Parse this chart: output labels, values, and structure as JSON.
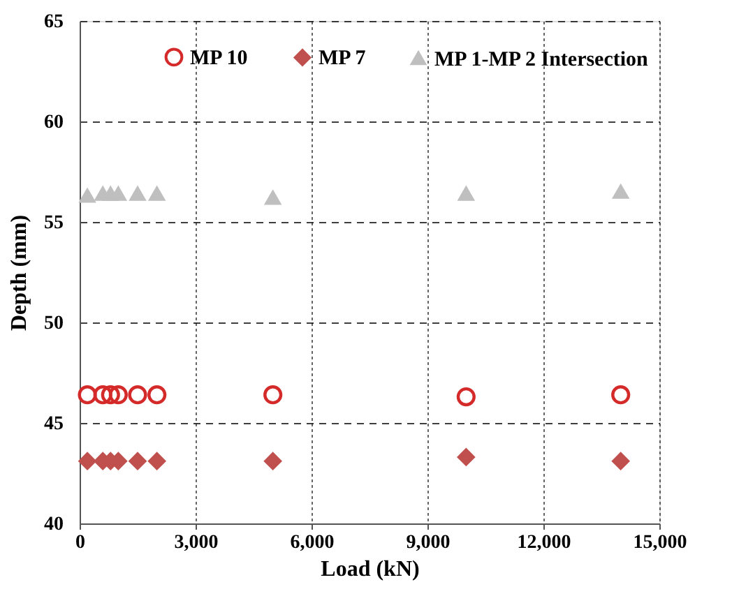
{
  "chart_data": {
    "type": "scatter",
    "xlabel": "Load (kN)",
    "ylabel": "Depth (mm)",
    "xlim": [
      0,
      15000
    ],
    "xticks": [
      0,
      {
        "value": 3000,
        "label": "3,000"
      },
      {
        "value": 6000,
        "label": "6,000"
      },
      {
        "value": 9000,
        "label": "9,000"
      },
      {
        "value": 12000,
        "label": "12,000"
      },
      {
        "value": 15000,
        "label": "15,000"
      }
    ],
    "ylim": [
      40,
      65
    ],
    "yticks": [
      40,
      45,
      50,
      55,
      60,
      65
    ],
    "grid": true,
    "legend": "top",
    "x": [
      200,
      600,
      800,
      1000,
      1500,
      2000,
      5000,
      10000,
      14000
    ],
    "series": [
      {
        "name": "MP 10",
        "color": "#d42a2a",
        "marker": "circle",
        "values": [
          46.4,
          46.4,
          46.4,
          46.4,
          46.4,
          46.4,
          46.4,
          46.3,
          46.4
        ]
      },
      {
        "name": "MP 7",
        "color": "#c0504d",
        "marker": "diamond",
        "values": [
          43.1,
          43.1,
          43.1,
          43.1,
          43.1,
          43.1,
          43.1,
          43.3,
          43.1
        ]
      },
      {
        "name": "MP 1-MP 2 Intersection",
        "color": "#bfbfbf",
        "marker": "triangle",
        "values": [
          56.3,
          56.4,
          56.4,
          56.4,
          56.4,
          56.4,
          56.2,
          56.4,
          56.5
        ]
      }
    ]
  }
}
